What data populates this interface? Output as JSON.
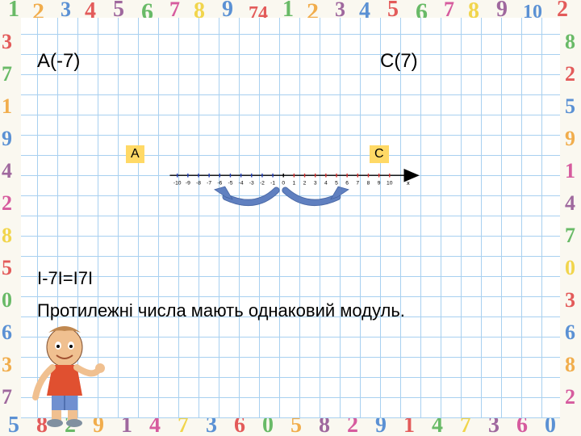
{
  "point_A": {
    "label": "А(-7)",
    "marker": "А",
    "value": -7
  },
  "point_C": {
    "label": "С(7)",
    "marker": "С",
    "value": 7
  },
  "equation": "І-7І=І7І",
  "statement": "Протилежні числа мають однаковий модуль.",
  "axis_label": "х",
  "numberline": {
    "min": -10,
    "max": 10,
    "labels": [
      "-10",
      "-9",
      "-8",
      "-7",
      "-6",
      "-5",
      "-4",
      "-3",
      "-2",
      "-1",
      "0",
      "1",
      "2",
      "3",
      "4",
      "5",
      "6",
      "7",
      "8",
      "9",
      "10"
    ],
    "negative_tick_color": "#2040c0",
    "positive_tick_color": "#e03030",
    "zero_tick_color": "#000000",
    "line_color": "#000000",
    "label_color": "#000000"
  },
  "marker_box_bg": "#ffd966",
  "arrows": {
    "fill": "#6080c0",
    "stroke": "#4060a0"
  },
  "inner_bg": "#ffffff",
  "grid_color": "#a8d0f0",
  "grid_size": 25,
  "font": {
    "title_size": 24,
    "body_size": 22,
    "marker_size": 16,
    "tick_size": 14
  },
  "border_colors": [
    "#e04040",
    "#f0a030",
    "#50b050",
    "#4080d0",
    "#905090",
    "#d04090",
    "#f0d030"
  ],
  "cartoon": {
    "shirt": "#e05030",
    "shorts": "#7090d0",
    "skin": "#f0c090",
    "shoe": "#8090a0"
  }
}
